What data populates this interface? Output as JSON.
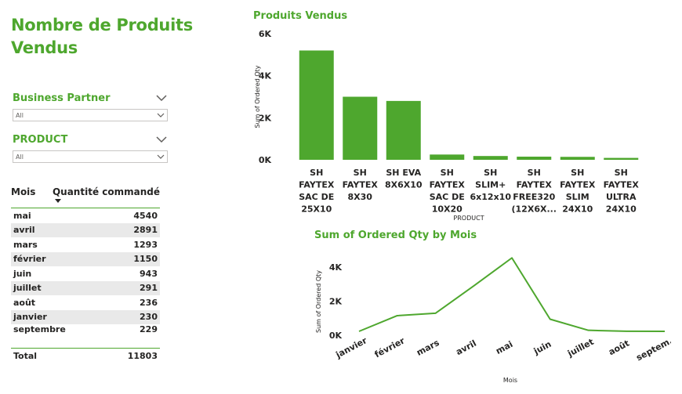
{
  "page": {
    "title": "Nombre de Produits Vendus"
  },
  "slicers": [
    {
      "title": "Business Partner",
      "value": "All"
    },
    {
      "title": "PRODUCT",
      "value": "All"
    }
  ],
  "month_table": {
    "headers": [
      "Mois",
      "Quantité commandé"
    ],
    "rows": [
      {
        "mois": "mai",
        "qty": "4540"
      },
      {
        "mois": "avril",
        "qty": "2891"
      },
      {
        "mois": "mars",
        "qty": "1293"
      },
      {
        "mois": "février",
        "qty": "1150"
      },
      {
        "mois": "juin",
        "qty": "943"
      },
      {
        "mois": "juillet",
        "qty": "291"
      },
      {
        "mois": "août",
        "qty": "236"
      },
      {
        "mois": "janvier",
        "qty": "230"
      },
      {
        "mois": "septembre",
        "qty": "229"
      }
    ],
    "total_label": "Total",
    "total_value": "11803"
  },
  "colors": {
    "accent": "#4ea72e",
    "bar": "#4ea72e"
  },
  "chart_data": [
    {
      "type": "bar",
      "title": "Produits Vendus",
      "xlabel": "PRODUCT",
      "ylabel": "Sum of Ordered Qty",
      "ylim": [
        0,
        6000
      ],
      "yticks": [
        "0K",
        "2K",
        "4K",
        "6K"
      ],
      "categories": [
        "SH FAYTEX SAC DE 25X10",
        "SH FAYTEX 8X30",
        "SH EVA 8X6X10",
        "SH FAYTEX SAC DE 10X20",
        "SH SLIM+ 6x12x10",
        "SH FAYTEX FREE320 (12X6X...",
        "SH FAYTEX SLIM 24X10",
        "SH FAYTEX ULTRA 24X10"
      ],
      "category_lines": [
        [
          "SH",
          "FAYTEX",
          "SAC DE",
          "25X10"
        ],
        [
          "SH",
          "FAYTEX",
          "8X30"
        ],
        [
          "SH EVA",
          "8X6X10"
        ],
        [
          "SH",
          "FAYTEX",
          "SAC DE",
          "10X20"
        ],
        [
          "SH",
          "SLIM+",
          "6x12x10"
        ],
        [
          "SH",
          "FAYTEX",
          "FREE320",
          "(12X6X..."
        ],
        [
          "SH",
          "FAYTEX",
          "SLIM",
          "24X10"
        ],
        [
          "SH",
          "FAYTEX",
          "ULTRA",
          "24X10"
        ]
      ],
      "values": [
        5200,
        3000,
        2800,
        250,
        180,
        150,
        140,
        90
      ]
    },
    {
      "type": "line",
      "title": "Sum of Ordered Qty by Mois",
      "xlabel": "Mois",
      "ylabel": "Sum of Ordered Qty",
      "ylim": [
        0,
        4540
      ],
      "yticks": [
        "0K",
        "2K",
        "4K"
      ],
      "categories": [
        "janvier",
        "février",
        "mars",
        "avril",
        "mai",
        "juin",
        "juillet",
        "août",
        "septem..."
      ],
      "values": [
        230,
        1150,
        1293,
        2891,
        4540,
        943,
        291,
        236,
        229
      ]
    }
  ]
}
